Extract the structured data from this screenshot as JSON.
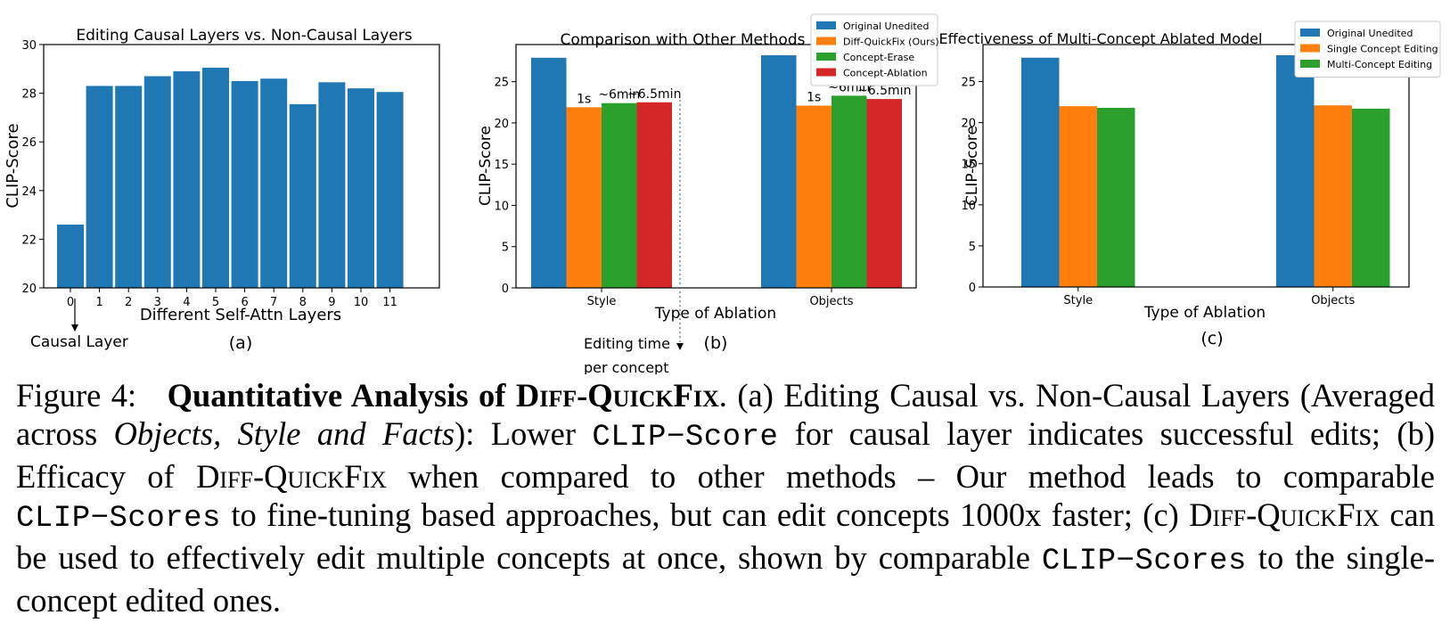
{
  "chart_data": [
    {
      "type": "bar",
      "title": "Editing Causal Layers vs. Non-Causal Layers",
      "xlabel": "Different Self-Attn Layers",
      "ylabel": "CLIP-Score",
      "panel_label": "(a)",
      "categories": [
        "0",
        "1",
        "2",
        "3",
        "4",
        "5",
        "6",
        "7",
        "8",
        "9",
        "10",
        "11"
      ],
      "values": [
        22.6,
        28.3,
        28.3,
        28.7,
        28.9,
        29.05,
        28.5,
        28.6,
        27.55,
        28.45,
        28.2,
        28.05
      ],
      "ylim": [
        20,
        30
      ],
      "yticks": [
        "20",
        "22",
        "24",
        "26",
        "28",
        "30"
      ],
      "color": "#1f77b4",
      "annotation": "Causal Layer",
      "grid": false
    },
    {
      "type": "bar",
      "title": "Comparison with Other Methods",
      "xlabel": "Type of Ablation",
      "ylabel": "CLIP-Score",
      "panel_label": "(b)",
      "categories": [
        "Style",
        "Objects"
      ],
      "series": [
        {
          "name": "Original Unedited",
          "values": [
            27.9,
            28.2
          ],
          "color": "#1f77b4"
        },
        {
          "name": "Diff-QuickFix (Ours)",
          "values": [
            21.9,
            22.1
          ],
          "color": "#ff7f0e"
        },
        {
          "name": "Concept-Erase",
          "values": [
            22.4,
            23.3
          ],
          "color": "#2ca02c"
        },
        {
          "name": "Concept-Ablation",
          "values": [
            22.5,
            22.9
          ],
          "color": "#d62728"
        }
      ],
      "bar_labels": [
        [
          "",
          "1s",
          "~6min",
          "~6.5min"
        ],
        [
          "",
          "1s",
          "~6min",
          "~6.5min"
        ]
      ],
      "annotation": [
        "Editing time",
        "per concept"
      ],
      "ylim": [
        0,
        29.5
      ],
      "yticks": [
        "0",
        "5",
        "10",
        "15",
        "20",
        "25"
      ],
      "legend": "top-right",
      "grid": false
    },
    {
      "type": "bar",
      "title": "Effectiveness of Multi-Concept Ablated Model",
      "xlabel": "Type of Ablation",
      "ylabel": "CLIP-Score",
      "panel_label": "(c)",
      "categories": [
        "Style",
        "Objects"
      ],
      "series": [
        {
          "name": "Original Unedited",
          "values": [
            27.9,
            28.2
          ],
          "color": "#1f77b4"
        },
        {
          "name": "Single Concept Editing",
          "values": [
            22.0,
            22.1
          ],
          "color": "#ff7f0e"
        },
        {
          "name": "Multi-Concept Editing",
          "values": [
            21.8,
            21.7
          ],
          "color": "#2ca02c"
        }
      ],
      "ylim": [
        0,
        29.5
      ],
      "yticks": [
        "0",
        "5",
        "10",
        "15",
        "20",
        "25"
      ],
      "legend": "top-right",
      "grid": false
    }
  ],
  "caption": {
    "figure_label": "Figure 4:",
    "bold_prefix": "Quantitative Analysis of ",
    "method_name": "Diff-QuickFix",
    "s1": ". (a) Editing Causal vs. Non-Causal Layers (Averaged across ",
    "italic_1": "Objects, Style and Facts",
    "s2": "): Lower ",
    "mono_1": "CLIP−Score",
    "s3": " for causal layer indicates successful edits; (b) Efficacy of ",
    "method_name_2": "Diff-QuickFix",
    "s4": " when compared to other methods – Our method leads to comparable ",
    "mono_2": "CLIP−Scores",
    "s5": " to fine-tuning based approaches, but can edit concepts 1000x faster; (c) ",
    "method_name_3": "Diff-QuickFix",
    "s6": " can be used to effectively edit multiple concepts at once, shown by comparable ",
    "mono_3": "CLIP−Scores",
    "s7": " to the single-concept edited ones."
  }
}
